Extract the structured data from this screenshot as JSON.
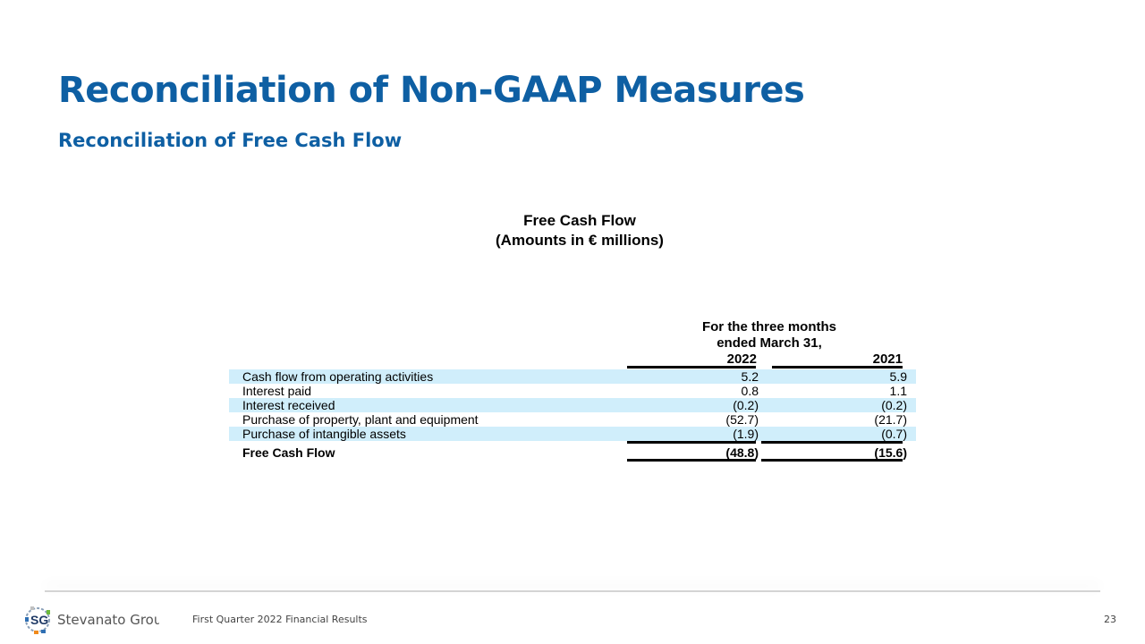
{
  "slide": {
    "title": "Reconciliation of Non-GAAP Measures",
    "subtitle": "Reconciliation of Free Cash Flow"
  },
  "table": {
    "title_line1": "Free Cash Flow",
    "title_line2": "(Amounts in € millions)",
    "header_line1": "For the three months",
    "header_line2": "ended March 31,",
    "year_2022": "2022",
    "year_2021": "2021",
    "rows": [
      {
        "label": "Cash flow from operating activities",
        "v2022": "5.2",
        "v2021": "5.9"
      },
      {
        "label": "Interest paid",
        "v2022": "0.8",
        "v2021": "1.1"
      },
      {
        "label": "Interest received",
        "v2022": "(0.2)",
        "v2021": "(0.2)"
      },
      {
        "label": "Purchase of property, plant and equipment",
        "v2022": "(52.7)",
        "v2021": "(21.7)"
      },
      {
        "label": "Purchase of intangible assets",
        "v2022": "(1.9)",
        "v2021": "(0.7)"
      }
    ],
    "total": {
      "label": "Free Cash Flow",
      "v2022": "(48.8)",
      "v2021": "(15.6)"
    }
  },
  "footer": {
    "company": "Stevanato Group",
    "logo_letters": "SG",
    "text": "First Quarter 2022 Financial Results",
    "page_number": "23"
  },
  "colors": {
    "brand_blue": "#0e5fa3",
    "row_band": "#d0eefb"
  }
}
